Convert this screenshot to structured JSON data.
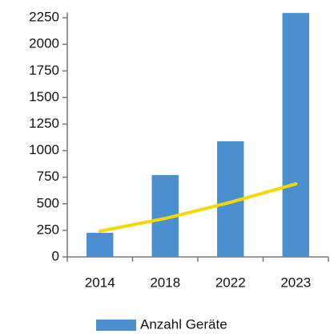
{
  "chart_data": {
    "type": "bar",
    "categories": [
      "2014",
      "2018",
      "2022",
      "2023"
    ],
    "series": [
      {
        "name": "Anzahl Geräte",
        "color": "#4a8fcf",
        "values": [
          227,
          770,
          1088,
          2295
        ]
      }
    ],
    "trendline": {
      "color": "#f5d800",
      "values": [
        242,
        362,
        514,
        687
      ]
    },
    "ylim": [
      0,
      2300
    ],
    "yticks": [
      0,
      250,
      500,
      750,
      1000,
      1250,
      1500,
      1750,
      2000,
      2250
    ],
    "legend": "bottom"
  }
}
